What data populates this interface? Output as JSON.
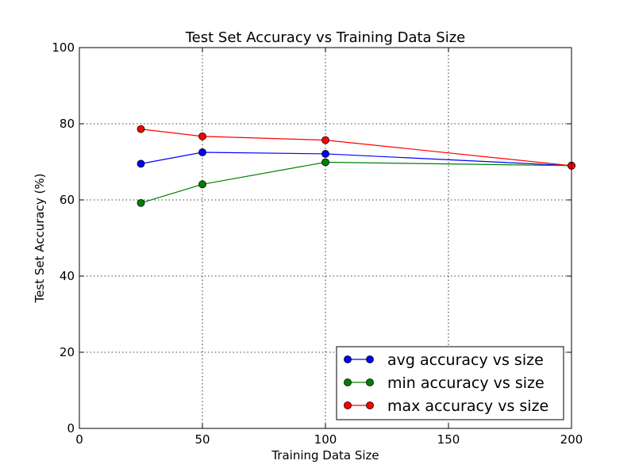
{
  "chart_data": {
    "type": "line",
    "title": "Test Set Accuracy vs Training Data Size",
    "xlabel": "Training Data Size",
    "ylabel": "Test Set Accuracy (%)",
    "xlim": [
      0,
      200
    ],
    "ylim": [
      0,
      100
    ],
    "xticks": [
      0,
      50,
      100,
      150,
      200
    ],
    "yticks": [
      0,
      20,
      40,
      60,
      80,
      100
    ],
    "grid": true,
    "legend_position": "lower-right",
    "x": [
      25,
      50,
      100,
      200
    ],
    "series": [
      {
        "name": "avg accuracy vs size",
        "color": "#0000ff",
        "values": [
          69.5,
          72.5,
          72.1,
          69.0
        ]
      },
      {
        "name": "min accuracy vs size",
        "color": "#008000",
        "values": [
          59.2,
          64.1,
          69.9,
          69.0
        ]
      },
      {
        "name": "max accuracy vs size",
        "color": "#ff0000",
        "values": [
          78.6,
          76.7,
          75.7,
          69.0
        ]
      }
    ]
  }
}
